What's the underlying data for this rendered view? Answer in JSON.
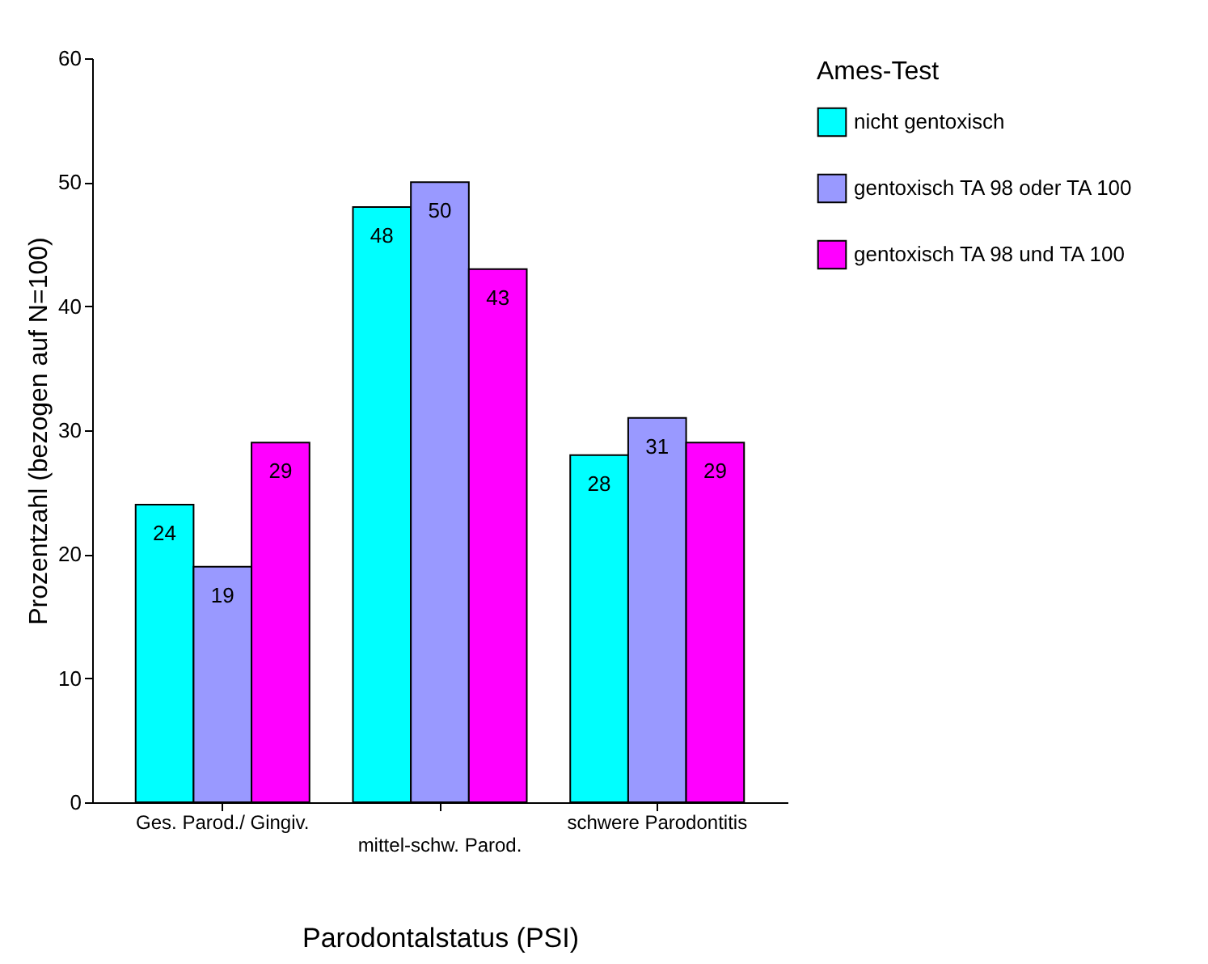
{
  "chart_data": {
    "type": "bar",
    "xlabel": "Parodontalstatus (PSI)",
    "ylabel": "Prozentzahl (bezogen auf N=100)",
    "legend_title": "Ames-Test",
    "categories": [
      "Ges. Parod./ Gingiv.",
      "mittel-schw. Parod.",
      "schwere Parodontitis"
    ],
    "series": [
      {
        "name": "nicht gentoxisch",
        "color": "#00ffff",
        "values": [
          24,
          48,
          28
        ]
      },
      {
        "name": "gentoxisch TA 98 oder TA 100",
        "color": "#9999ff",
        "values": [
          19,
          50,
          31
        ]
      },
      {
        "name": "gentoxisch TA 98 und TA 100",
        "color": "#ff00ff",
        "values": [
          29,
          43,
          29
        ]
      }
    ],
    "ylim": [
      0,
      60
    ],
    "yticks": [
      0,
      10,
      20,
      30,
      40,
      50,
      60
    ],
    "data_labels": true,
    "grid": false,
    "legend": "right"
  }
}
